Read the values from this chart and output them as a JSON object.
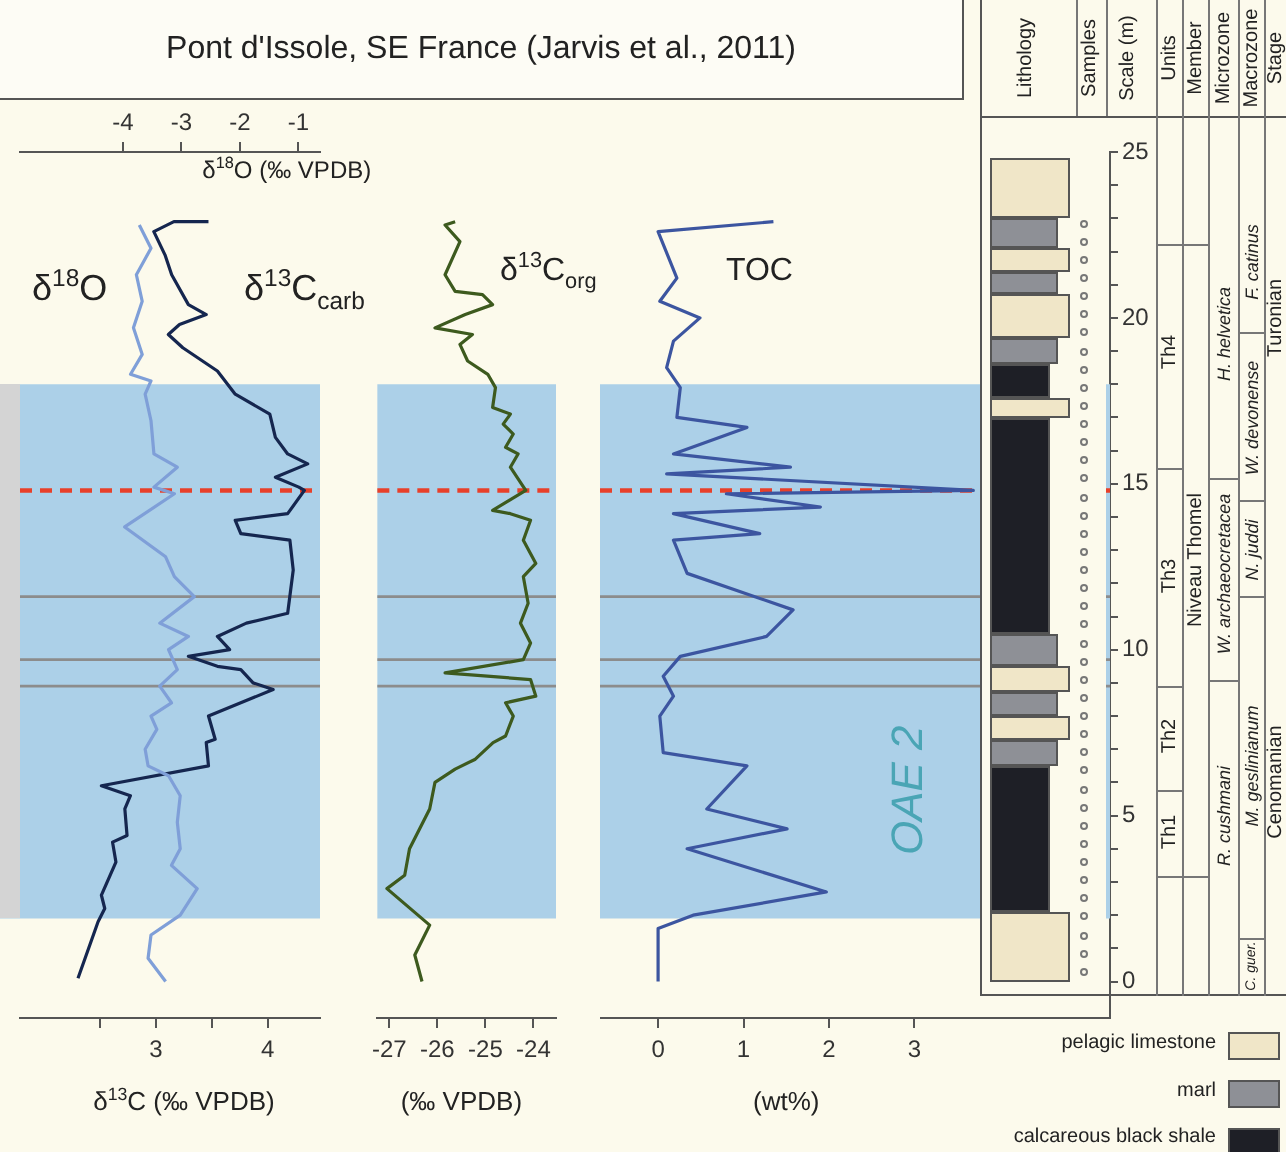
{
  "chart_data": [
    {
      "type": "line",
      "title": "Pont d'Issole, SE France (Jarvis et al., 2011)",
      "xlabel": "δ$^{13}$C (‰ VPDB)",
      "x2label": "δ$^{18}$O (‰ VPDB)",
      "xlim": [
        1.78,
        4.47
      ],
      "xticks": [
        {
          "value": 2.5,
          "label": null
        },
        3,
        {
          "value": 3.5,
          "label": null
        },
        4
      ],
      "x2lim": [
        -5.76,
        -0.63
      ],
      "x2ticks": [
        -4,
        -3,
        -2,
        -1
      ],
      "ylim": [
        -1.1,
        25
      ],
      "tick_labels": "x",
      "marker": "none",
      "line_style": "solid",
      "bands": [
        {
          "axis": "y",
          "from": 1.9,
          "to": 18.0,
          "color": "#acd0e8"
        }
      ],
      "ref_lines": [
        {
          "axis": "y",
          "value": 14.8,
          "color": "#e8402a",
          "line_style": "dashed"
        },
        {
          "axis": "y",
          "value": 11.6,
          "color": "#8c8c8c"
        },
        {
          "axis": "y",
          "value": 9.7,
          "color": "#8c8c8c"
        },
        {
          "axis": "y",
          "value": 8.9,
          "color": "#8c8c8c"
        }
      ],
      "series": [
        {
          "name": "δ$^{18}$O",
          "axis": "x2",
          "color": "#7f9fd8",
          "x": [
            -3.27,
            -3.57,
            -3.52,
            -3.02,
            -2.73,
            -3.17,
            -3.02,
            -3.07,
            -3.02,
            -3.22,
            -3.57,
            -3.62,
            -3.42,
            -3.52,
            -3.17,
            -3.37,
            -3.07,
            -3.22,
            -2.88,
            -3.37,
            -2.78,
            -3.12,
            -3.27,
            -3.97,
            -3.12,
            -3.47,
            -3.07,
            -3.47,
            -3.52,
            -3.62,
            -3.52,
            -3.87,
            -3.67,
            -3.82,
            -3.67,
            -3.77,
            -3.52,
            -3.72
          ],
          "values": [
            0.0,
            0.7,
            1.4,
            2.0,
            2.8,
            3.5,
            4.0,
            4.8,
            5.6,
            6.2,
            6.5,
            7.0,
            7.6,
            8.0,
            8.4,
            8.9,
            9.4,
            10.0,
            10.4,
            10.8,
            11.6,
            12.2,
            12.8,
            13.7,
            14.7,
            14.9,
            15.5,
            15.9,
            16.9,
            17.7,
            18.1,
            18.3,
            18.9,
            19.7,
            20.5,
            21.3,
            22.1,
            22.8
          ]
        },
        {
          "name": "δ$^{13}$C$_{carb}$",
          "color": "#15264f",
          "x": [
            2.3,
            2.48,
            2.54,
            2.51,
            2.64,
            2.61,
            2.74,
            2.72,
            2.77,
            2.51,
            3.47,
            3.45,
            3.53,
            3.47,
            4.05,
            3.87,
            3.76,
            3.55,
            3.29,
            3.66,
            3.55,
            3.81,
            4.18,
            4.23,
            4.2,
            3.76,
            3.71,
            4.18,
            4.33,
            4.28,
            4.07,
            4.36,
            4.18,
            4.07,
            4.02,
            3.71,
            3.55,
            3.24,
            3.11,
            3.21,
            3.45,
            3.29,
            3.14,
            3.08,
            2.98,
            3.16,
            3.47
          ],
          "values": [
            0.1,
            1.8,
            2.2,
            2.6,
            3.6,
            4.2,
            4.4,
            5.2,
            5.6,
            5.9,
            6.5,
            7.2,
            7.3,
            8.0,
            8.8,
            9.0,
            9.4,
            9.5,
            9.8,
            10.0,
            10.4,
            10.8,
            11.1,
            12.4,
            13.3,
            13.5,
            13.9,
            14.1,
            14.8,
            14.9,
            15.2,
            15.6,
            15.9,
            16.4,
            17.1,
            17.7,
            18.4,
            19.1,
            19.5,
            19.8,
            20.1,
            20.4,
            21.3,
            21.9,
            22.6,
            22.9,
            22.9
          ]
        }
      ]
    },
    {
      "type": "line",
      "xlabel": "(‰ VPDB)",
      "xlim": [
        -27.25,
        -23.53
      ],
      "xticks": [
        -27,
        -26,
        -25,
        -24
      ],
      "ylim": [
        -1.1,
        25
      ],
      "tick_labels": "x",
      "marker": "none",
      "line_style": "solid",
      "bands": [
        {
          "axis": "y",
          "from": 1.9,
          "to": 18.0,
          "color": "#acd0e8"
        }
      ],
      "ref_lines": [
        {
          "axis": "y",
          "value": 14.8,
          "color": "#e8402a",
          "line_style": "dashed"
        },
        {
          "axis": "y",
          "value": 11.6,
          "color": "#8c8c8c"
        },
        {
          "axis": "y",
          "value": 9.7,
          "color": "#8c8c8c"
        },
        {
          "axis": "y",
          "value": 8.9,
          "color": "#8c8c8c"
        }
      ],
      "series": [
        {
          "name": "δ$^{13}$C$_{org}$",
          "color": "#3d5a1e",
          "x": [
            -26.32,
            -26.47,
            -26.16,
            -27.05,
            -26.68,
            -26.58,
            -26.16,
            -26.05,
            -25.63,
            -25.21,
            -24.84,
            -24.58,
            -24.42,
            -24.58,
            -23.95,
            -24.06,
            -25.84,
            -24.21,
            -24.06,
            -24.27,
            -24.11,
            -24.21,
            -23.95,
            -24.21,
            -24.06,
            -24.48,
            -24.85,
            -24.16,
            -24.48,
            -24.32,
            -24.58,
            -24.42,
            -24.63,
            -24.48,
            -24.85,
            -24.79,
            -24.95,
            -25.37,
            -25.53,
            -25.27,
            -26.05,
            -25.42,
            -24.85,
            -25.06,
            -25.63,
            -25.84,
            -25.53,
            -25.84,
            -25.63
          ],
          "values": [
            0.0,
            0.8,
            1.7,
            2.8,
            3.2,
            4.0,
            5.2,
            6.0,
            6.4,
            6.7,
            7.2,
            7.4,
            8.0,
            8.4,
            8.6,
            9.1,
            9.3,
            9.7,
            10.2,
            10.8,
            11.4,
            12.2,
            12.6,
            13.3,
            13.9,
            14.1,
            14.2,
            14.8,
            15.5,
            15.9,
            16.1,
            16.5,
            16.8,
            17.1,
            17.3,
            17.9,
            18.3,
            18.7,
            19.2,
            19.5,
            19.7,
            20.1,
            20.4,
            20.7,
            20.8,
            21.3,
            22.3,
            22.8,
            22.9
          ]
        }
      ]
    },
    {
      "type": "line",
      "xlabel": "(wt%)",
      "ylabel": "Scale (m)",
      "xlim": [
        -0.68,
        5.29
      ],
      "xticks": [
        0,
        1,
        2,
        3
      ],
      "ylim": [
        -1.1,
        25
      ],
      "yticks": [
        0,
        {
          "value": 1,
          "label": null
        },
        {
          "value": 2,
          "label": null
        },
        {
          "value": 3,
          "label": null
        },
        {
          "value": 4,
          "label": null
        },
        5,
        {
          "value": 6,
          "label": null
        },
        {
          "value": 7,
          "label": null
        },
        {
          "value": 8,
          "label": null
        },
        {
          "value": 9,
          "label": null
        },
        10,
        {
          "value": 11,
          "label": null
        },
        {
          "value": 12,
          "label": null
        },
        {
          "value": 13,
          "label": null
        },
        {
          "value": 14,
          "label": null
        },
        15,
        {
          "value": 16,
          "label": null
        },
        {
          "value": 17,
          "label": null
        },
        {
          "value": 18,
          "label": null
        },
        {
          "value": 19,
          "label": null
        },
        20,
        {
          "value": 21,
          "label": null
        },
        {
          "value": 22,
          "label": null
        },
        {
          "value": 23,
          "label": null
        },
        {
          "value": 24,
          "label": null
        },
        25
      ],
      "marker": "none",
      "line_style": "solid",
      "bands": [
        {
          "axis": "y",
          "from": 1.9,
          "to": 18.0,
          "color": "#acd0e8",
          "label": "OAE 2"
        }
      ],
      "ref_lines": [
        {
          "axis": "y",
          "value": 14.8,
          "color": "#e8402a",
          "line_style": "dashed"
        },
        {
          "axis": "y",
          "value": 11.6,
          "color": "#8c8c8c"
        },
        {
          "axis": "y",
          "value": 9.7,
          "color": "#8c8c8c"
        },
        {
          "axis": "y",
          "value": 8.9,
          "color": "#8c8c8c"
        }
      ],
      "series": [
        {
          "name": "TOC",
          "color": "#3c55a0",
          "x": [
            0,
            0,
            0.41,
            1.97,
            0.34,
            1.51,
            0.57,
            1.04,
            0.06,
            0.02,
            0.18,
            0.06,
            0.26,
            1.27,
            1.58,
            0.34,
            0.18,
            1.19,
            0.18,
            1.9,
            0.8,
            3.69,
            0.1,
            1.55,
            0.18,
            1.04,
            0.22,
            0.26,
            0.1,
            0.18,
            0.49,
            0.02,
            0.22,
            0,
            1.35
          ],
          "values": [
            0.0,
            1.6,
            2.0,
            2.7,
            4.0,
            4.6,
            5.2,
            6.5,
            6.9,
            8.0,
            8.6,
            9.2,
            9.8,
            10.4,
            11.2,
            12.3,
            13.3,
            13.5,
            14.1,
            14.3,
            14.7,
            14.8,
            15.3,
            15.5,
            15.9,
            16.7,
            17.0,
            17.9,
            18.5,
            19.3,
            20.0,
            20.5,
            21.2,
            22.6,
            22.9
          ]
        }
      ]
    },
    {
      "type": "other",
      "annotations": [
        "Lithology",
        "Samples",
        "Units",
        "Member",
        "Microzone",
        "Macrozone",
        "Stage",
        "Th1",
        "Th2",
        "Th3",
        "Th4",
        "Niveau Thomel",
        "R. cushmani",
        "W. archaeocretacea",
        "H. helvetica",
        "C. guer.",
        "M. geslinianum",
        "N. juddi",
        "W. devonense",
        "F. catinus",
        "Cenomanian",
        "Turonian",
        "pelagic limestone",
        "marl",
        "calcareous black shale"
      ]
    }
  ]
}
